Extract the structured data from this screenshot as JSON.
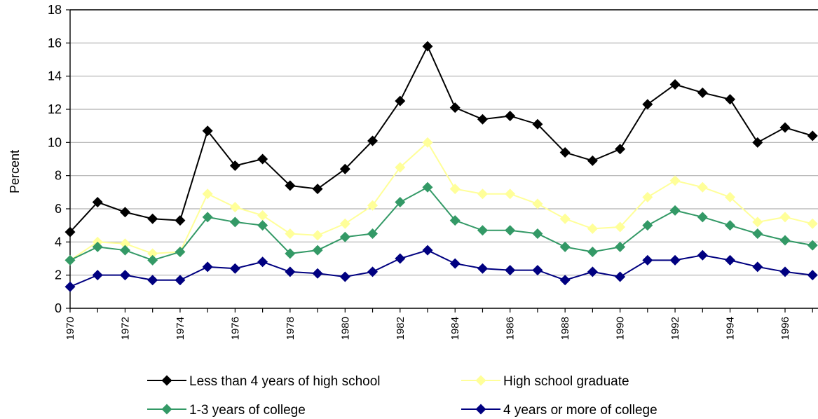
{
  "chart_data": {
    "type": "line",
    "ylabel": "Percent",
    "ylim": [
      0,
      18
    ],
    "yticks": [
      "0",
      "2",
      "4",
      "6",
      "8",
      "10",
      "12",
      "14",
      "16",
      "18"
    ],
    "x": [
      1970,
      1971,
      1972,
      1973,
      1974,
      1975,
      1976,
      1977,
      1978,
      1979,
      1980,
      1981,
      1982,
      1983,
      1984,
      1985,
      1986,
      1987,
      1988,
      1989,
      1990,
      1991,
      1992,
      1993,
      1994,
      1995,
      1996,
      1997
    ],
    "xtick_labels": [
      "1970",
      "1972",
      "1974",
      "1976",
      "1978",
      "1980",
      "1982",
      "1984",
      "1986",
      "1988",
      "1990",
      "1992",
      "1994",
      "1996"
    ],
    "grid": true,
    "legend_position": "bottom",
    "series": [
      {
        "name": "Less than 4 years of high school",
        "color": "#000000",
        "values": [
          4.6,
          6.4,
          5.8,
          5.4,
          5.3,
          10.7,
          8.6,
          9.0,
          7.4,
          7.2,
          8.4,
          10.1,
          12.5,
          15.8,
          12.1,
          11.4,
          11.6,
          11.1,
          9.4,
          8.9,
          9.6,
          12.3,
          13.5,
          13.0,
          12.6,
          10.0,
          10.9,
          10.4
        ]
      },
      {
        "name": "High school graduate",
        "color": "#ffff99",
        "values": [
          2.9,
          4.0,
          3.9,
          3.3,
          3.4,
          6.9,
          6.1,
          5.6,
          4.5,
          4.4,
          5.1,
          6.2,
          8.5,
          10.0,
          7.2,
          6.9,
          6.9,
          6.3,
          5.4,
          4.8,
          4.9,
          6.7,
          7.7,
          7.3,
          6.7,
          5.2,
          5.5,
          5.1
        ]
      },
      {
        "name": "1-3 years of college",
        "color": "#339966",
        "values": [
          2.9,
          3.7,
          3.5,
          2.9,
          3.4,
          5.5,
          5.2,
          5.0,
          3.3,
          3.5,
          4.3,
          4.5,
          6.4,
          7.3,
          5.3,
          4.7,
          4.7,
          4.5,
          3.7,
          3.4,
          3.7,
          5.0,
          5.9,
          5.5,
          5.0,
          4.5,
          4.1,
          3.8
        ]
      },
      {
        "name": "4 years or more of college",
        "color": "#000080",
        "values": [
          1.3,
          2.0,
          2.0,
          1.7,
          1.7,
          2.5,
          2.4,
          2.8,
          2.2,
          2.1,
          1.9,
          2.2,
          3.0,
          3.5,
          2.7,
          2.4,
          2.3,
          2.3,
          1.7,
          2.2,
          1.9,
          2.9,
          2.9,
          3.2,
          2.9,
          2.5,
          2.2,
          2.0
        ]
      }
    ]
  }
}
